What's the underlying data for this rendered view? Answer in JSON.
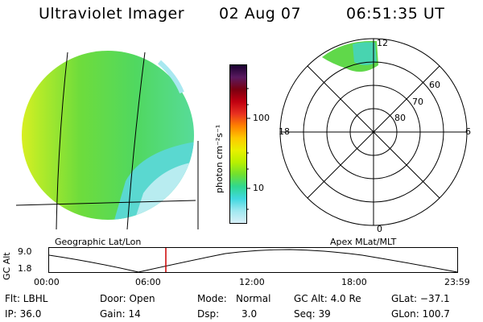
{
  "header": {
    "title": "Ultraviolet Imager",
    "date": "02 Aug 07",
    "time": "06:51:35 UT"
  },
  "colorbar": {
    "unit_label": "photon cm⁻²s⁻¹",
    "ticks": [
      "100",
      "10"
    ],
    "colors": [
      "#1a0030",
      "#5a1a60",
      "#7a0010",
      "#c00010",
      "#e83020",
      "#ff8000",
      "#ffc800",
      "#e8f000",
      "#b8f000",
      "#70e030",
      "#30d890",
      "#40d8e0",
      "#a0e8f0",
      "#d8f0f8"
    ]
  },
  "geo_panel": {
    "caption": "Geographic Lat/Lon"
  },
  "polar_panel": {
    "caption": "Apex MLat/MLT",
    "mlt_labels": {
      "top": "12",
      "bottom": "0",
      "left": "18",
      "right": "6"
    },
    "mlat_labels": [
      "60",
      "70",
      "80"
    ]
  },
  "timeline": {
    "ylabel": "GC Alt",
    "y_ticks": [
      "9.0",
      "1.8"
    ],
    "x_ticks": [
      "00:00",
      "06:00",
      "12:00",
      "18:00",
      "23:59"
    ],
    "marker_color": "#cc0000"
  },
  "status": {
    "flt": "Flt: LBHL",
    "ip": "IP: 36.0",
    "door": "Door: Open",
    "gain": "Gain: 14",
    "mode_label": "Mode:",
    "mode_value": "Normal",
    "dsp_label": "Dsp:",
    "dsp_value": "3.0",
    "gcalt": "GC Alt: 4.0 Re",
    "seq": "Seq: 39",
    "glat": "GLat: −37.1",
    "glon": "GLon: 100.7"
  }
}
